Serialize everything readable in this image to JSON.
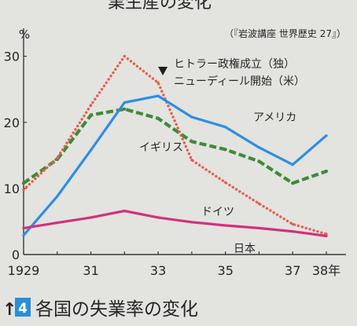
{
  "top_heading_fragment": "業生産の変化",
  "source": "（『岩波講座 世界歴史 27』）",
  "caption": {
    "arrow": "↑",
    "number": "4",
    "number_badge_color": "#2a8fd6"
  },
  "colors": {
    "background": "#e3e3e0",
    "text": "#262626",
    "axis": "#3a3a3a"
  },
  "chart_data": {
    "type": "line",
    "title": "各国の失業率の変化",
    "xlabel": "",
    "ylabel": "%",
    "x": [
      1929,
      1930,
      1931,
      1932,
      1933,
      1934,
      1935,
      1936,
      1937,
      1938
    ],
    "xlim": [
      1929,
      1938
    ],
    "ylim": [
      0,
      34
    ],
    "x_ticks": [
      1929,
      1931,
      1933,
      1935,
      1937,
      1938
    ],
    "x_tick_labels": [
      "1929",
      "31",
      "33",
      "35",
      "37",
      "38年"
    ],
    "y_ticks": [
      0,
      10,
      20,
      30
    ],
    "grid": false,
    "legend": "none",
    "series": [
      {
        "name": "アメリカ",
        "color": "#2f8ee0",
        "values": [
          2.9,
          8.8,
          15.8,
          23.0,
          24.0,
          20.8,
          19.3,
          16.2,
          13.6,
          18.0
        ]
      },
      {
        "name": "イギリス",
        "color": "#3f8a3a",
        "values": [
          10.8,
          14.4,
          21.1,
          22.0,
          20.6,
          17.1,
          15.9,
          14.1,
          10.8,
          12.6
        ]
      },
      {
        "name": "ドイツ",
        "color": "#e2604e",
        "values": [
          9.8,
          14.6,
          22.6,
          30.0,
          26.0,
          14.3,
          10.9,
          7.7,
          4.6,
          3.1
        ]
      },
      {
        "name": "日本",
        "color": "#d2317c",
        "values": [
          4.0,
          4.8,
          5.6,
          6.6,
          5.6,
          4.9,
          4.4,
          4.0,
          3.5,
          2.8
        ]
      }
    ],
    "annotations": [
      {
        "x": 1933,
        "marker_icon": "down-triangle-icon",
        "lines": [
          "ヒトラー政権成立（独）",
          "ニューディール開始（米）"
        ]
      }
    ]
  }
}
